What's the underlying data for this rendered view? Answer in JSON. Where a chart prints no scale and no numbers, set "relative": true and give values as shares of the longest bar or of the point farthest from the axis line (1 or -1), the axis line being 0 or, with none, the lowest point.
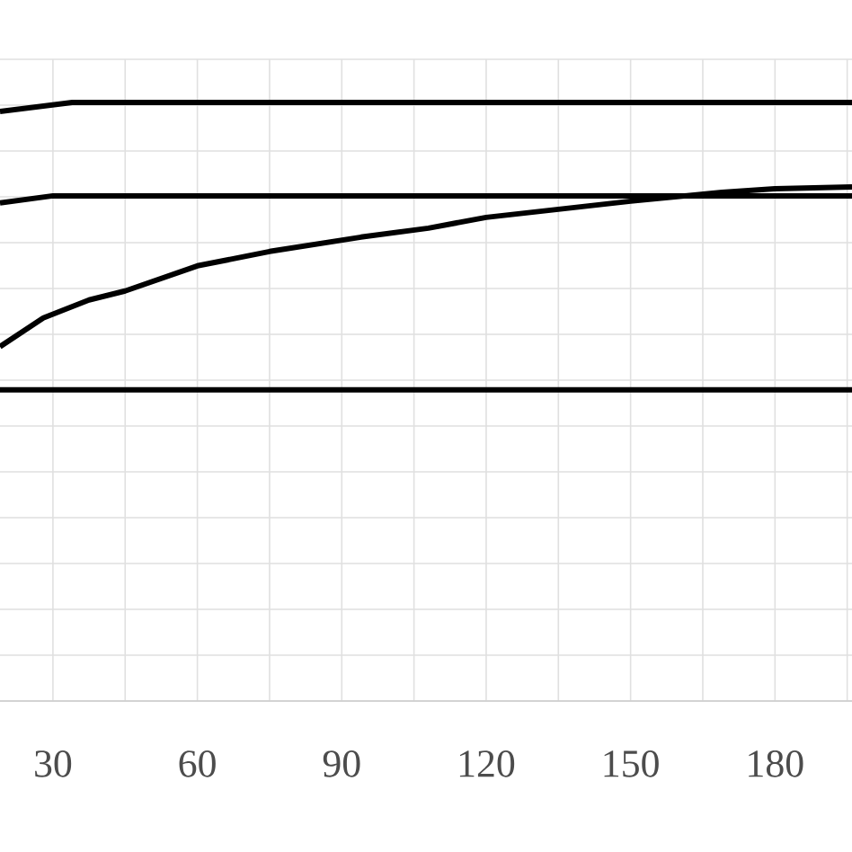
{
  "chart_data": {
    "type": "line",
    "relative": true,
    "grid": true,
    "xlim": [
      19,
      196
    ],
    "xticks": [
      30,
      {
        "value": 45,
        "label": null
      },
      60,
      {
        "value": 75,
        "label": null
      },
      90,
      {
        "value": 105,
        "label": null
      },
      120,
      {
        "value": 135,
        "label": null
      },
      150,
      {
        "value": 165,
        "label": null
      },
      180,
      {
        "value": 195,
        "label": null
      }
    ],
    "series": [
      {
        "color": "#000000",
        "x": [
          19,
          34,
          196
        ],
        "values": [
          0.985,
          1.0,
          1.0
        ]
      },
      {
        "color": "#000000",
        "x": [
          19,
          30,
          196
        ],
        "values": [
          0.832,
          0.844,
          0.844
        ]
      },
      {
        "color": "#000000",
        "x": [
          19,
          28,
          37.5,
          45,
          60,
          75,
          94,
          108,
          120,
          150,
          169,
          180,
          196
        ],
        "values": [
          0.592,
          0.64,
          0.67,
          0.685,
          0.727,
          0.751,
          0.775,
          0.79,
          0.808,
          0.835,
          0.85,
          0.856,
          0.859
        ]
      },
      {
        "color": "#000000",
        "x": [
          19,
          196
        ],
        "values": [
          0.52,
          0.52
        ]
      }
    ]
  }
}
